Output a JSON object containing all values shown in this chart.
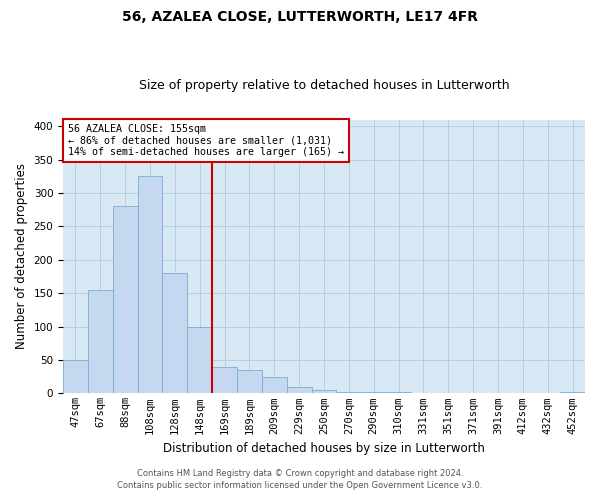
{
  "title": "56, AZALEA CLOSE, LUTTERWORTH, LE17 4FR",
  "subtitle": "Size of property relative to detached houses in Lutterworth",
  "xlabel": "Distribution of detached houses by size in Lutterworth",
  "ylabel": "Number of detached properties",
  "categories": [
    "47sqm",
    "67sqm",
    "88sqm",
    "108sqm",
    "128sqm",
    "148sqm",
    "169sqm",
    "189sqm",
    "209sqm",
    "229sqm",
    "250sqm",
    "270sqm",
    "290sqm",
    "310sqm",
    "331sqm",
    "351sqm",
    "371sqm",
    "391sqm",
    "412sqm",
    "432sqm",
    "452sqm"
  ],
  "values": [
    50,
    155,
    280,
    325,
    180,
    100,
    40,
    35,
    25,
    10,
    5,
    2,
    2,
    2,
    0,
    0,
    0,
    0,
    0,
    0,
    2
  ],
  "bar_color": "#c5d8f0",
  "bar_edge_color": "#7aadd4",
  "annotation_title": "56 AZALEA CLOSE: 155sqm",
  "annotation_line1": "← 86% of detached houses are smaller (1,031)",
  "annotation_line2": "14% of semi-detached houses are larger (165) →",
  "annotation_box_color": "#ffffff",
  "annotation_box_edge": "#cc0000",
  "vline_color": "#cc0000",
  "grid_color": "#b8cfe0",
  "plot_bg_color": "#d8e8f4",
  "footer1": "Contains HM Land Registry data © Crown copyright and database right 2024.",
  "footer2": "Contains public sector information licensed under the Open Government Licence v3.0.",
  "ylim": [
    0,
    410
  ],
  "title_fontsize": 10,
  "subtitle_fontsize": 9,
  "tick_fontsize": 7.5,
  "ylabel_fontsize": 8.5,
  "xlabel_fontsize": 8.5
}
